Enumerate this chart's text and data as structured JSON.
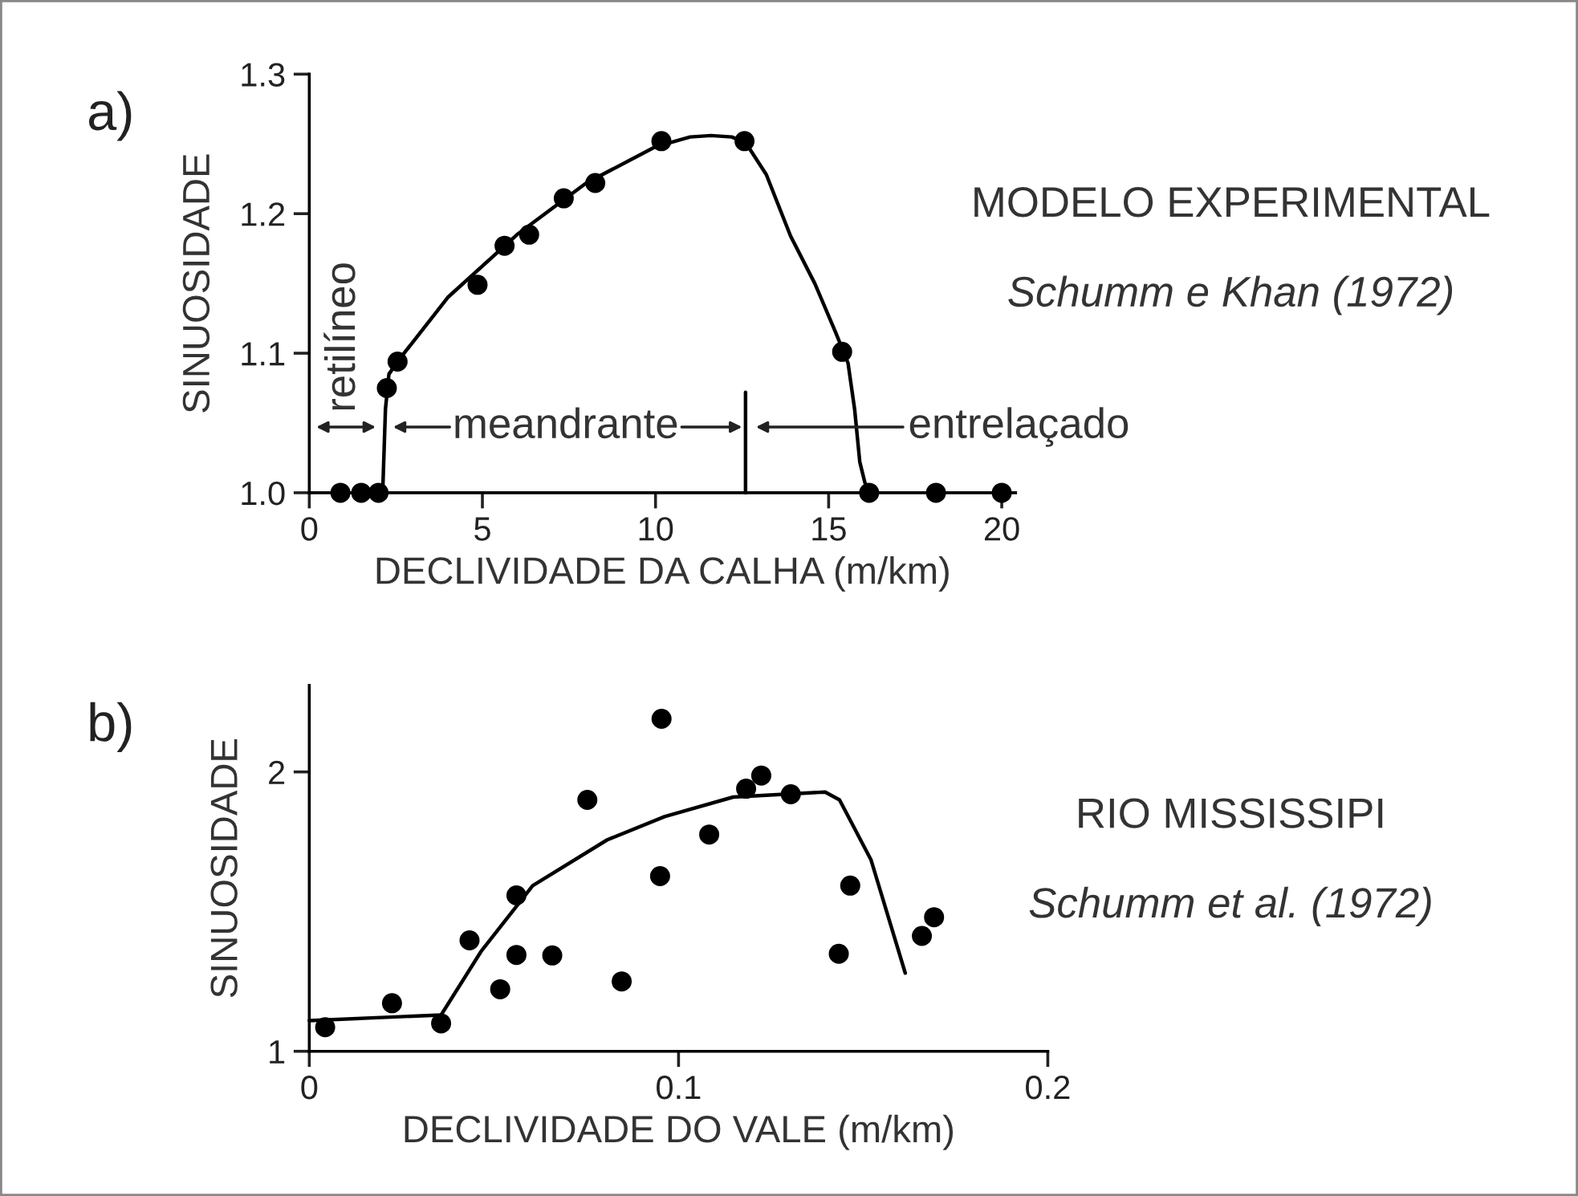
{
  "chart_data": [
    {
      "type": "scatter",
      "title": "MODELO EXPERIMENTAL",
      "subtitle": "Schumm e Khan (1972)",
      "xlabel": "DECLIVIDADE DA CALHA (m/km)",
      "ylabel": "SINUOSIDADE",
      "annotations": [
        "a)",
        "retilíneo",
        "meandrante",
        "entrelaçado"
      ],
      "xlim": [
        0,
        20.4
      ],
      "xticks": [
        0,
        5,
        10,
        15,
        20
      ],
      "ylim": [
        1.0,
        1.3
      ],
      "yticks": [
        {
          "value": 1.0,
          "label": "1.0"
        },
        {
          "value": 1.1,
          "label": "1.1"
        },
        {
          "value": 1.2,
          "label": "1.2"
        },
        {
          "value": 1.3,
          "label": "1.3"
        }
      ],
      "grid": false,
      "legend": false,
      "series": [
        {
          "type": "scatter",
          "marker": "circle",
          "color": "#000000",
          "x": [
            0.9,
            1.5,
            2.0,
            2.24,
            2.55,
            4.86,
            5.64,
            6.35,
            7.35,
            8.26,
            10.17,
            12.57,
            15.39,
            16.17,
            18.1,
            20.0
          ],
          "values": [
            1.0,
            1.0,
            1.0,
            1.075,
            1.094,
            1.149,
            1.177,
            1.185,
            1.211,
            1.222,
            1.252,
            1.252,
            1.101,
            1.0,
            1.0,
            1.0
          ]
        },
        {
          "type": "line",
          "marker": "none",
          "color": "#000000",
          "x": [
            2.12,
            2.2,
            2.3,
            2.55,
            4.0,
            6.0,
            8.0,
            10.0,
            11.0,
            11.6,
            12.2,
            12.6,
            13.2,
            13.9,
            14.6,
            15.2,
            15.56,
            15.75,
            15.9,
            16.05,
            16.2
          ],
          "values": [
            1.0,
            1.06,
            1.085,
            1.094,
            1.14,
            1.185,
            1.222,
            1.248,
            1.255,
            1.256,
            1.255,
            1.251,
            1.228,
            1.184,
            1.15,
            1.115,
            1.093,
            1.06,
            1.022,
            1.007,
            1.0
          ]
        },
        {
          "type": "line",
          "marker": "none",
          "color": "#000000",
          "x": [
            12.6,
            12.6
          ],
          "values": [
            1.0,
            1.072
          ]
        }
      ]
    },
    {
      "type": "scatter",
      "title": "RIO MISSISSIPI",
      "subtitle": "Schumm et al. (1972)",
      "xlabel": "DECLIVIDADE DO VALE (m/km)",
      "ylabel": "SINUOSIDADE",
      "annotations": [
        "b)"
      ],
      "xlim": [
        0,
        0.2
      ],
      "xticks": [
        0,
        0.1,
        0.2
      ],
      "ylim": [
        1,
        2.31
      ],
      "yticks": [
        1,
        2
      ],
      "grid": false,
      "legend": false,
      "series": [
        {
          "type": "scatter",
          "marker": "circle",
          "color": "#000000",
          "x": [
            0.0043,
            0.0224,
            0.0357,
            0.0434,
            0.0517,
            0.0561,
            0.0561,
            0.0658,
            0.0753,
            0.0846,
            0.0954,
            0.095,
            0.1083,
            0.1183,
            0.1224,
            0.1304,
            0.1434,
            0.1465,
            0.1659,
            0.1692
          ],
          "values": [
            1.086,
            1.172,
            1.1,
            1.397,
            1.222,
            1.558,
            1.345,
            1.343,
            1.9,
            1.25,
            2.19,
            1.627,
            1.776,
            1.94,
            1.987,
            1.92,
            1.349,
            1.593,
            1.413,
            1.48
          ]
        },
        {
          "type": "line",
          "marker": "none",
          "color": "#000000",
          "x": [
            0.0,
            0.0357,
            0.0465,
            0.0605,
            0.0807,
            0.0962,
            0.1148,
            0.1397,
            0.1436,
            0.1521,
            0.1614
          ],
          "values": [
            1.11,
            1.13,
            1.357,
            1.593,
            1.757,
            1.84,
            1.91,
            1.928,
            1.9,
            1.686,
            1.28
          ]
        }
      ]
    }
  ]
}
